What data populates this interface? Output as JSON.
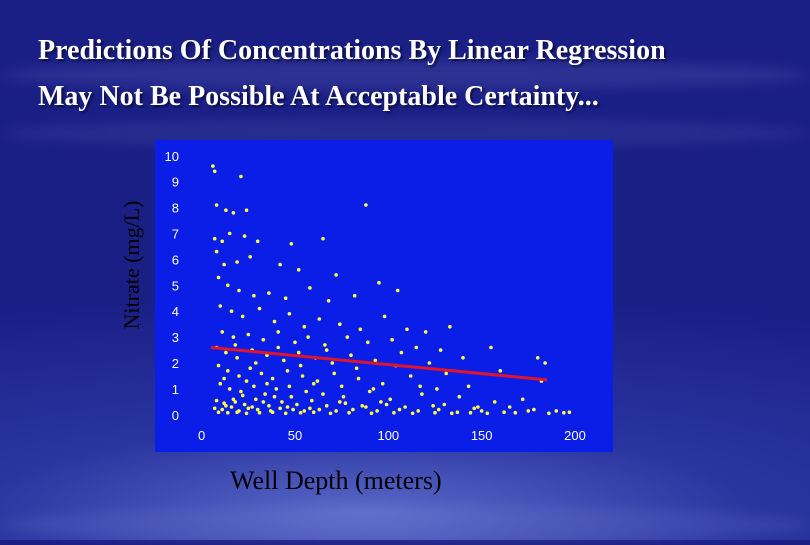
{
  "title": {
    "line1": "Predictions Of Concentrations By Linear Regression",
    "line2": "May Not Be Possible At Acceptable Certainty..."
  },
  "colors": {
    "background": "#1f2a99",
    "plot_background": "#0a1ee8",
    "points": "#ffff40",
    "regression": "#e0142a",
    "text": "#ffffff"
  },
  "chart_data": {
    "type": "scatter",
    "xlabel": "Well Depth (meters)",
    "ylabel": "Nitrate (mg/L)",
    "xlim": [
      -10,
      215
    ],
    "ylim": [
      -0.2,
      10.3
    ],
    "xticks": [
      0,
      50,
      100,
      150,
      200
    ],
    "yticks": [
      0,
      1,
      2,
      3,
      4,
      5,
      6,
      7,
      8,
      9,
      10
    ],
    "grid": false,
    "series": [
      {
        "points": [
          [
            6,
            9.6
          ],
          [
            7,
            9.4
          ],
          [
            21,
            9.2
          ],
          [
            8,
            8.1
          ],
          [
            13,
            7.9
          ],
          [
            17,
            7.8
          ],
          [
            24,
            7.9
          ],
          [
            88,
            8.1
          ],
          [
            7,
            6.8
          ],
          [
            11,
            6.7
          ],
          [
            15,
            7.0
          ],
          [
            23,
            6.9
          ],
          [
            30,
            6.7
          ],
          [
            48,
            6.6
          ],
          [
            65,
            6.8
          ],
          [
            8,
            6.3
          ],
          [
            12,
            5.8
          ],
          [
            19,
            5.9
          ],
          [
            26,
            6.1
          ],
          [
            42,
            5.8
          ],
          [
            52,
            5.6
          ],
          [
            72,
            5.4
          ],
          [
            95,
            5.1
          ],
          [
            9,
            5.3
          ],
          [
            14,
            5.0
          ],
          [
            20,
            4.8
          ],
          [
            28,
            4.6
          ],
          [
            36,
            4.7
          ],
          [
            45,
            4.5
          ],
          [
            58,
            4.9
          ],
          [
            68,
            4.4
          ],
          [
            82,
            4.6
          ],
          [
            105,
            4.8
          ],
          [
            10,
            4.2
          ],
          [
            16,
            4.0
          ],
          [
            22,
            3.8
          ],
          [
            31,
            4.1
          ],
          [
            39,
            3.6
          ],
          [
            47,
            3.9
          ],
          [
            55,
            3.4
          ],
          [
            63,
            3.7
          ],
          [
            74,
            3.5
          ],
          [
            85,
            3.3
          ],
          [
            98,
            3.8
          ],
          [
            110,
            3.3
          ],
          [
            120,
            3.2
          ],
          [
            133,
            3.4
          ],
          [
            11,
            3.2
          ],
          [
            17,
            3.0
          ],
          [
            25,
            3.1
          ],
          [
            33,
            2.9
          ],
          [
            41,
            3.2
          ],
          [
            50,
            2.8
          ],
          [
            57,
            3.0
          ],
          [
            66,
            2.7
          ],
          [
            78,
            3.0
          ],
          [
            89,
            2.8
          ],
          [
            102,
            2.9
          ],
          [
            115,
            2.6
          ],
          [
            128,
            2.5
          ],
          [
            8,
            2.6
          ],
          [
            13,
            2.4
          ],
          [
            19,
            2.2
          ],
          [
            27,
            2.5
          ],
          [
            35,
            2.3
          ],
          [
            44,
            2.1
          ],
          [
            52,
            2.4
          ],
          [
            61,
            2.2
          ],
          [
            70,
            2.0
          ],
          [
            80,
            2.3
          ],
          [
            93,
            2.1
          ],
          [
            107,
            2.4
          ],
          [
            122,
            2.0
          ],
          [
            140,
            2.2
          ],
          [
            155,
            2.6
          ],
          [
            180,
            2.2
          ],
          [
            184,
            2.0
          ],
          [
            9,
            1.9
          ],
          [
            14,
            1.7
          ],
          [
            20,
            1.5
          ],
          [
            26,
            1.8
          ],
          [
            32,
            1.6
          ],
          [
            38,
            1.4
          ],
          [
            46,
            1.7
          ],
          [
            54,
            1.5
          ],
          [
            62,
            1.3
          ],
          [
            71,
            1.6
          ],
          [
            84,
            1.4
          ],
          [
            97,
            1.2
          ],
          [
            112,
            1.5
          ],
          [
            131,
            1.6
          ],
          [
            160,
            1.7
          ],
          [
            182,
            1.3
          ],
          [
            10,
            1.2
          ],
          [
            15,
            1.0
          ],
          [
            21,
            0.9
          ],
          [
            28,
            1.1
          ],
          [
            34,
            0.8
          ],
          [
            40,
            1.0
          ],
          [
            48,
            0.7
          ],
          [
            56,
            0.9
          ],
          [
            65,
            0.8
          ],
          [
            76,
            0.7
          ],
          [
            90,
            0.9
          ],
          [
            101,
            0.6
          ],
          [
            118,
            0.8
          ],
          [
            138,
            0.7
          ],
          [
            157,
            0.5
          ],
          [
            172,
            0.6
          ],
          [
            8,
            0.55
          ],
          [
            12,
            0.45
          ],
          [
            18,
            0.5
          ],
          [
            23,
            0.4
          ],
          [
            29,
            0.6
          ],
          [
            36,
            0.35
          ],
          [
            43,
            0.5
          ],
          [
            51,
            0.4
          ],
          [
            59,
            0.55
          ],
          [
            67,
            0.35
          ],
          [
            77,
            0.45
          ],
          [
            88,
            0.3
          ],
          [
            99,
            0.4
          ],
          [
            109,
            0.3
          ],
          [
            124,
            0.35
          ],
          [
            146,
            0.25
          ],
          [
            165,
            0.3
          ],
          [
            178,
            0.2
          ],
          [
            7,
            0.25
          ],
          [
            11,
            0.2
          ],
          [
            16,
            0.3
          ],
          [
            20,
            0.15
          ],
          [
            25,
            0.25
          ],
          [
            30,
            0.2
          ],
          [
            37,
            0.15
          ],
          [
            42,
            0.25
          ],
          [
            49,
            0.2
          ],
          [
            55,
            0.15
          ],
          [
            63,
            0.2
          ],
          [
            72,
            0.15
          ],
          [
            81,
            0.2
          ],
          [
            94,
            0.15
          ],
          [
            106,
            0.2
          ],
          [
            116,
            0.15
          ],
          [
            127,
            0.2
          ],
          [
            137,
            0.1
          ],
          [
            150,
            0.15
          ],
          [
            162,
            0.1
          ],
          [
            175,
            0.15
          ],
          [
            190,
            0.15
          ],
          [
            197,
            0.1
          ],
          [
            9,
            0.1
          ],
          [
            14,
            0.08
          ],
          [
            19,
            0.1
          ],
          [
            24,
            0.06
          ],
          [
            31,
            0.08
          ],
          [
            38,
            0.1
          ],
          [
            45,
            0.06
          ],
          [
            53,
            0.08
          ],
          [
            60,
            0.1
          ],
          [
            69,
            0.06
          ],
          [
            79,
            0.08
          ],
          [
            91,
            0.06
          ],
          [
            103,
            0.08
          ],
          [
            113,
            0.06
          ],
          [
            125,
            0.08
          ],
          [
            134,
            0.06
          ],
          [
            144,
            0.08
          ],
          [
            153,
            0.06
          ],
          [
            168,
            0.08
          ],
          [
            186,
            0.06
          ],
          [
            194,
            0.08
          ],
          [
            13,
            0.35
          ],
          [
            17,
            0.6
          ],
          [
            22,
            0.75
          ],
          [
            27,
            0.3
          ],
          [
            33,
            0.5
          ],
          [
            39,
            0.7
          ],
          [
            46,
            0.3
          ],
          [
            58,
            0.25
          ],
          [
            74,
            0.5
          ],
          [
            86,
            0.35
          ],
          [
            96,
            0.5
          ],
          [
            130,
            0.4
          ],
          [
            148,
            0.3
          ],
          [
            12,
            1.4
          ],
          [
            18,
            2.7
          ],
          [
            24,
            1.3
          ],
          [
            29,
            2.0
          ],
          [
            35,
            1.2
          ],
          [
            41,
            2.6
          ],
          [
            47,
            1.1
          ],
          [
            53,
            1.9
          ],
          [
            60,
            1.2
          ],
          [
            67,
            2.5
          ],
          [
            75,
            1.1
          ],
          [
            83,
            1.8
          ],
          [
            92,
            1.0
          ],
          [
            104,
            1.9
          ],
          [
            117,
            1.1
          ],
          [
            126,
            1.0
          ],
          [
            143,
            1.1
          ]
        ]
      },
      {
        "line": [
          [
            5,
            2.6
          ],
          [
            185,
            1.35
          ]
        ]
      }
    ]
  }
}
